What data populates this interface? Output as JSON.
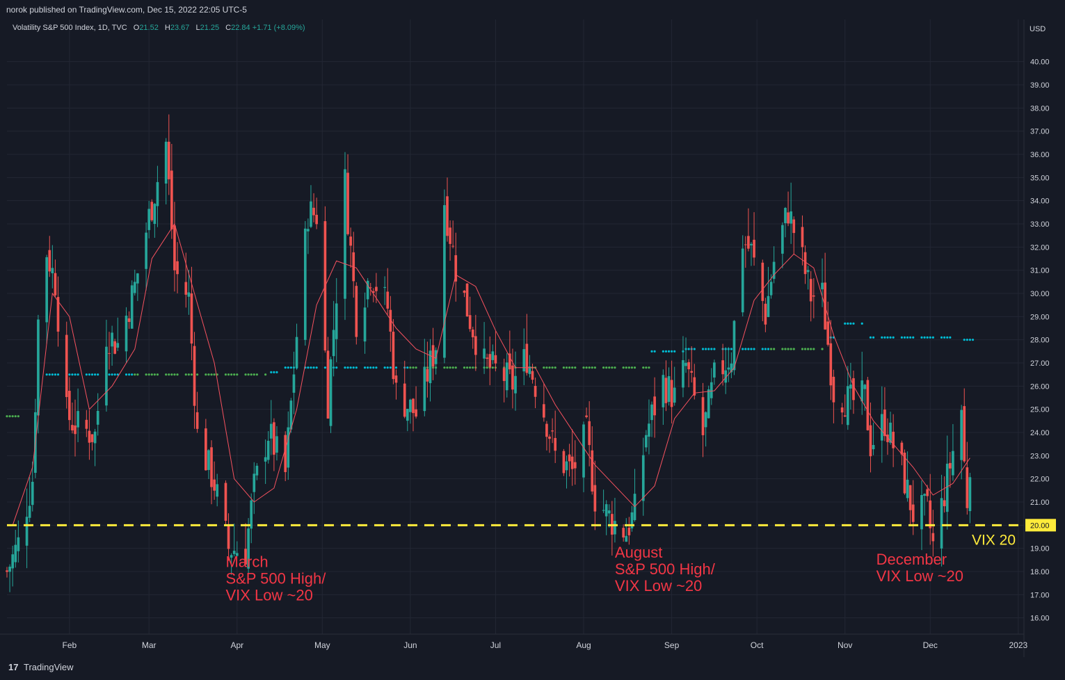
{
  "header": {
    "published": "norok published on TradingView.com, Dec 15, 2022 22:05 UTC-5"
  },
  "legend": {
    "symbol": "Volatility S&P 500 Index, 1D, TVC",
    "open_label": "O",
    "open": "21.52",
    "high_label": "H",
    "high": "23.67",
    "low_label": "L",
    "low": "21.25",
    "close_label": "C",
    "close": "22.84",
    "change": "+1.71 (+8.09%)"
  },
  "footer": {
    "logo": "17",
    "brand": "TradingView"
  },
  "colors": {
    "up": "#26a69a",
    "down": "#ef5350",
    "background": "#161a25",
    "grid": "#232734",
    "annotation": "#f23645",
    "vix_line": "#ffeb3b",
    "ma": "#f7525f",
    "dot_blue": "#00bcd4",
    "dot_green": "#4caf50"
  },
  "chart_data": {
    "type": "candlestick",
    "currency": "USD",
    "ylim": [
      15.3,
      40.8
    ],
    "y_ticks": [
      "16.00",
      "17.00",
      "18.00",
      "19.00",
      "20.00",
      "21.00",
      "22.00",
      "23.00",
      "24.00",
      "25.00",
      "26.00",
      "27.00",
      "28.00",
      "29.00",
      "30.00",
      "31.00",
      "32.00",
      "33.00",
      "34.00",
      "35.00",
      "36.00",
      "37.00",
      "38.00",
      "39.00",
      "40.00"
    ],
    "x_ticks": [
      {
        "label": "Feb",
        "date": "2022-02-01"
      },
      {
        "label": "Mar",
        "date": "2022-03-01"
      },
      {
        "label": "Apr",
        "date": "2022-04-01"
      },
      {
        "label": "May",
        "date": "2022-05-01"
      },
      {
        "label": "Jun",
        "date": "2022-06-01"
      },
      {
        "label": "Jul",
        "date": "2022-07-01"
      },
      {
        "label": "Aug",
        "date": "2022-08-01"
      },
      {
        "label": "Sep",
        "date": "2022-09-01"
      },
      {
        "label": "Oct",
        "date": "2022-10-01"
      },
      {
        "label": "Nov",
        "date": "2022-11-01"
      },
      {
        "label": "Dec",
        "date": "2022-12-01"
      },
      {
        "label": "2023",
        "date": "2023-01-01"
      }
    ],
    "x_range": [
      "2022-01-10",
      "2023-01-03"
    ],
    "close_path": [
      [
        "2022-01-10",
        18.0
      ],
      [
        "2022-01-14",
        19.2
      ],
      [
        "2022-01-19",
        22.0
      ],
      [
        "2022-01-21",
        28.8
      ],
      [
        "2022-01-24",
        31.8
      ],
      [
        "2022-01-27",
        30.5
      ],
      [
        "2022-01-31",
        24.8
      ],
      [
        "2022-02-03",
        24.3
      ],
      [
        "2022-02-10",
        23.9
      ],
      [
        "2022-02-14",
        28.3
      ],
      [
        "2022-02-18",
        27.8
      ],
      [
        "2022-02-24",
        30.3
      ],
      [
        "2022-03-01",
        33.3
      ],
      [
        "2022-03-07",
        36.5
      ],
      [
        "2022-03-10",
        31.0
      ],
      [
        "2022-03-15",
        29.8
      ],
      [
        "2022-03-18",
        23.9
      ],
      [
        "2022-03-24",
        21.8
      ],
      [
        "2022-03-29",
        19.0
      ],
      [
        "2022-04-04",
        18.9
      ],
      [
        "2022-04-07",
        21.6
      ],
      [
        "2022-04-12",
        24.0
      ],
      [
        "2022-04-18",
        22.2
      ],
      [
        "2022-04-22",
        28.2
      ],
      [
        "2022-04-26",
        33.5
      ],
      [
        "2022-04-29",
        33.4
      ],
      [
        "2022-05-03",
        25.4
      ],
      [
        "2022-05-09",
        34.8
      ],
      [
        "2022-05-13",
        28.9
      ],
      [
        "2022-05-18",
        30.9
      ],
      [
        "2022-05-24",
        29.4
      ],
      [
        "2022-05-27",
        25.7
      ],
      [
        "2022-06-03",
        24.8
      ],
      [
        "2022-06-10",
        27.8
      ],
      [
        "2022-06-13",
        34.0
      ],
      [
        "2022-06-17",
        31.1
      ],
      [
        "2022-06-22",
        28.9
      ],
      [
        "2022-06-27",
        26.9
      ],
      [
        "2022-07-01",
        26.7
      ],
      [
        "2022-07-07",
        26.1
      ],
      [
        "2022-07-12",
        27.3
      ],
      [
        "2022-07-19",
        24.5
      ],
      [
        "2022-07-22",
        23.0
      ],
      [
        "2022-07-28",
        22.3
      ],
      [
        "2022-08-02",
        23.9
      ],
      [
        "2022-08-05",
        21.2
      ],
      [
        "2022-08-11",
        20.2
      ],
      [
        "2022-08-16",
        19.7
      ],
      [
        "2022-08-19",
        20.6
      ],
      [
        "2022-08-23",
        24.0
      ],
      [
        "2022-08-29",
        26.2
      ],
      [
        "2022-09-02",
        25.5
      ],
      [
        "2022-09-06",
        26.9
      ],
      [
        "2022-09-12",
        23.9
      ],
      [
        "2022-09-16",
        26.3
      ],
      [
        "2022-09-22",
        27.4
      ],
      [
        "2022-09-26",
        32.3
      ],
      [
        "2022-09-29",
        31.8
      ],
      [
        "2022-10-04",
        29.1
      ],
      [
        "2022-10-07",
        31.4
      ],
      [
        "2022-10-12",
        33.6
      ],
      [
        "2022-10-17",
        31.4
      ],
      [
        "2022-10-20",
        29.9
      ],
      [
        "2022-10-24",
        29.9
      ],
      [
        "2022-10-28",
        25.8
      ],
      [
        "2022-11-03",
        25.3
      ],
      [
        "2022-11-08",
        25.5
      ],
      [
        "2022-11-10",
        23.5
      ],
      [
        "2022-11-15",
        24.5
      ],
      [
        "2022-11-21",
        22.4
      ],
      [
        "2022-11-25",
        20.5
      ],
      [
        "2022-11-30",
        20.6
      ],
      [
        "2022-12-02",
        19.1
      ],
      [
        "2022-12-05",
        20.8
      ],
      [
        "2022-12-08",
        22.6
      ],
      [
        "2022-12-12",
        25.0
      ],
      [
        "2022-12-13",
        22.6
      ],
      [
        "2022-12-14",
        21.1
      ],
      [
        "2022-12-15",
        22.84
      ]
    ],
    "ma_path": [
      [
        "2022-01-12",
        20.0
      ],
      [
        "2022-01-19",
        22.5
      ],
      [
        "2022-01-26",
        30.0
      ],
      [
        "2022-02-01",
        29.0
      ],
      [
        "2022-02-08",
        25.0
      ],
      [
        "2022-02-16",
        26.0
      ],
      [
        "2022-02-24",
        27.6
      ],
      [
        "2022-03-02",
        31.5
      ],
      [
        "2022-03-10",
        33.0
      ],
      [
        "2022-03-17",
        30.0
      ],
      [
        "2022-03-24",
        27.0
      ],
      [
        "2022-03-31",
        22.0
      ],
      [
        "2022-04-07",
        21.0
      ],
      [
        "2022-04-14",
        21.6
      ],
      [
        "2022-04-22",
        25.0
      ],
      [
        "2022-04-29",
        29.5
      ],
      [
        "2022-05-06",
        31.4
      ],
      [
        "2022-05-13",
        31.1
      ],
      [
        "2022-05-20",
        29.8
      ],
      [
        "2022-05-27",
        28.5
      ],
      [
        "2022-06-03",
        27.6
      ],
      [
        "2022-06-10",
        27.2
      ],
      [
        "2022-06-17",
        30.8
      ],
      [
        "2022-06-24",
        30.3
      ],
      [
        "2022-07-01",
        28.4
      ],
      [
        "2022-07-08",
        26.8
      ],
      [
        "2022-07-15",
        26.8
      ],
      [
        "2022-07-22",
        25.2
      ],
      [
        "2022-07-29",
        23.9
      ],
      [
        "2022-08-05",
        22.6
      ],
      [
        "2022-08-12",
        21.7
      ],
      [
        "2022-08-19",
        20.8
      ],
      [
        "2022-08-26",
        21.7
      ],
      [
        "2022-09-02",
        24.6
      ],
      [
        "2022-09-09",
        25.7
      ],
      [
        "2022-09-16",
        25.8
      ],
      [
        "2022-09-23",
        26.8
      ],
      [
        "2022-09-30",
        29.7
      ],
      [
        "2022-10-07",
        30.8
      ],
      [
        "2022-10-14",
        31.7
      ],
      [
        "2022-10-21",
        31.1
      ],
      [
        "2022-10-28",
        28.2
      ],
      [
        "2022-11-04",
        26.0
      ],
      [
        "2022-11-11",
        24.5
      ],
      [
        "2022-11-18",
        23.5
      ],
      [
        "2022-11-25",
        22.5
      ],
      [
        "2022-12-02",
        21.3
      ],
      [
        "2022-12-09",
        21.8
      ],
      [
        "2022-12-15",
        22.9
      ]
    ],
    "stop_dots": [
      {
        "from": "2022-01-10",
        "to": "2022-01-15",
        "value": 24.7,
        "color": "green"
      },
      {
        "from": "2022-01-24",
        "to": "2022-02-23",
        "value": 26.5,
        "color": "blue"
      },
      {
        "from": "2022-02-24",
        "to": "2022-04-11",
        "value": 26.5,
        "color": "green"
      },
      {
        "from": "2022-04-13",
        "to": "2022-04-15",
        "value": 26.6,
        "color": "blue"
      },
      {
        "from": "2022-04-18",
        "to": "2022-05-31",
        "value": 26.8,
        "color": "blue"
      },
      {
        "from": "2022-06-01",
        "to": "2022-08-24",
        "value": 26.8,
        "color": "green"
      },
      {
        "from": "2022-08-25",
        "to": "2022-09-05",
        "value": 27.5,
        "color": "blue"
      },
      {
        "from": "2022-09-06",
        "to": "2022-10-05",
        "value": 27.6,
        "color": "blue"
      },
      {
        "from": "2022-10-06",
        "to": "2022-10-24",
        "value": 27.6,
        "color": "green"
      },
      {
        "from": "2022-10-26",
        "to": "2022-10-28",
        "value": 28.1,
        "color": "blue"
      },
      {
        "from": "2022-11-01",
        "to": "2022-11-07",
        "value": 28.7,
        "color": "blue"
      },
      {
        "from": "2022-11-10",
        "to": "2022-12-08",
        "value": 28.1,
        "color": "blue"
      },
      {
        "from": "2022-12-13",
        "to": "2022-12-18",
        "value": 28.0,
        "color": "blue"
      }
    ],
    "horizontal_line": {
      "value": 20.0,
      "price_label": "20.00",
      "label": "VIX 20"
    },
    "annotations": [
      {
        "date": "2022-03-28",
        "value": 18.2,
        "lines": [
          "March",
          "S&P 500 High/",
          "VIX Low ~20"
        ]
      },
      {
        "date": "2022-08-12",
        "value": 18.6,
        "lines": [
          "August",
          "S&P 500 High/",
          "VIX Low ~20"
        ]
      },
      {
        "date": "2022-11-12",
        "value": 18.3,
        "lines": [
          "December",
          "VIX Low ~20"
        ]
      }
    ]
  }
}
